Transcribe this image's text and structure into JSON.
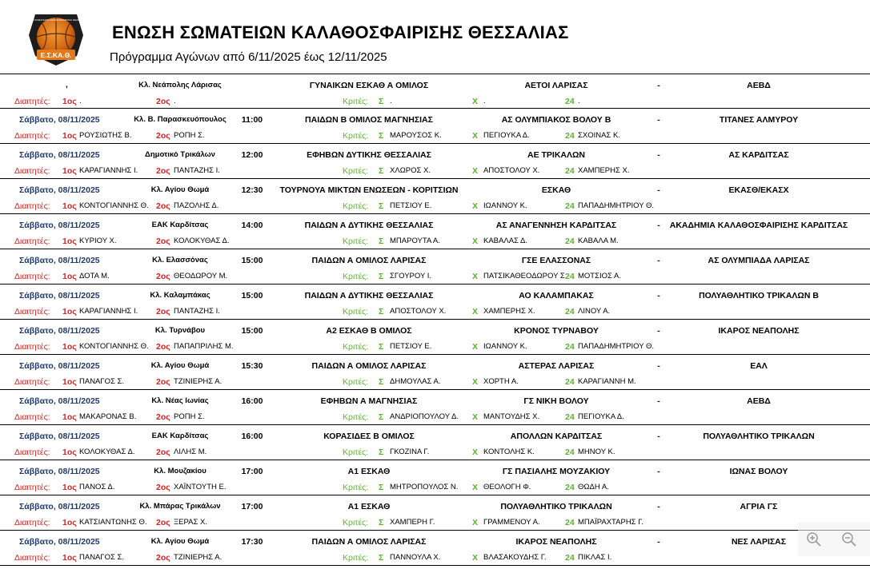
{
  "header": {
    "logo_text_top": "ΕΝΩΣΗ ΣΩΜΑΤΕΙΩΝ ΚΑΛΑΘΟΣΦΑΙΡΙΣΗΣ ΘΕΣΣΑΛΙΑΣ",
    "logo_text_bottom": "Ε.Σ.ΚΑ.Θ.",
    "title": "ΕΝΩΣΗ ΣΩΜΑΤΕΙΩΝ ΚΑΛΑΘΟΣΦΑΙΡΙΣΗΣ ΘΕΣΣΑΛΙΑΣ",
    "subtitle": "Πρόγραμμα Αγώνων από 6/11/2025 έως 12/11/2025"
  },
  "labels": {
    "referees": "Διαιτητές:",
    "ref1": "1ος",
    "ref2": "2ος",
    "judges": "Κριτές:",
    "judge_s": "Σ",
    "judge_x": "Χ",
    "judge_24": "24",
    "dash": "-"
  },
  "colors": {
    "date": "#1f3a6e",
    "referees": "#e02020",
    "judges": "#5bb330"
  },
  "matches": [
    {
      "date": ",",
      "court": "Κλ. Νεάπολης Λάρισας",
      "time": "",
      "category": "ΓΥΝΑΙΚΩΝ ΕΣΚΑΘ Α ΟΜΙΛΟΣ",
      "home": "ΑΕΤΟΙ ΛΑΡΙΣΑΣ",
      "away": "ΑΕΒΔ",
      "ref1": ".",
      "ref2": ".",
      "judge1": ".",
      "judge2": ".",
      "judge3": "."
    },
    {
      "date": "Σάββατο, 08/11/2025",
      "court": "Κλ. Β. Παρασκευόπουλος",
      "time": "11:00",
      "category": "ΠΑΙΔΩΝ Β ΟΜΙΛΟΣ ΜΑΓΝΗΣΙΑΣ",
      "home": "ΑΣ ΟΛΥΜΠΙΑΚΟΣ ΒΟΛΟΥ Β",
      "away": "ΤΙΤΑΝΕΣ ΑΛΜΥΡΟΥ",
      "ref1": "ΡΟΥΣΙΩΤΗΣ Β.",
      "ref2": "ΡΟΠΗ Σ.",
      "judge1": "ΜΑΡΟΥΣΟΣ Κ.",
      "judge2": "ΠΕΓΙΟΥΚΑ Δ.",
      "judge3": "ΣΧΟΙΝΑΣ Κ."
    },
    {
      "date": "Σάββατο, 08/11/2025",
      "court": "Δημοτικό Τρικάλων",
      "time": "12:00",
      "category": "ΕΦΗΒΩΝ ΔΥΤΙΚΗΣ ΘΕΣΣΑΛΙΑΣ",
      "home": "ΑΕ ΤΡΙΚΑΛΩΝ",
      "away": "ΑΣ ΚΑΡΔΙΤΣΑΣ",
      "ref1": "ΚΑΡΑΓΙΑΝΝΗΣ Ι.",
      "ref2": "ΠΑΝΤΑΖΗΣ Ι.",
      "judge1": "ΧΛΩΡΟΣ Χ.",
      "judge2": "ΑΠΟΣΤΟΛΟΥ Χ.",
      "judge3": "ΧΑΜΠΕΡΗΣ Χ."
    },
    {
      "date": "Σάββατο, 08/11/2025",
      "court": "Κλ. Αγίου Θωμά",
      "time": "12:30",
      "category": "ΤΟΥΡΝΟΥΑ ΜΙΚΤΩΝ ΕΝΩΣΕΩΝ - ΚΟΡΙΤΣΙΩΝ",
      "home": "ΕΣΚΑΘ",
      "away": "ΕΚΑΣΘ/ΕΚΑΣΧ",
      "ref1": "ΚΟΝΤΟΓΙΑΝΝΗΣ Θ.",
      "ref2": "ΠΑΖΟΛΗΣ Δ.",
      "judge1": "ΠΕΤΣΙΟΥ Ε.",
      "judge2": "ΙΩΑΝΝΟΥ Κ.",
      "judge3": "ΠΑΠΑΔΗΜΗΤΡΙΟΥ Θ."
    },
    {
      "date": "Σάββατο, 08/11/2025",
      "court": "ΕΑΚ Καρδίτσας",
      "time": "14:00",
      "category": "ΠΑΙΔΩΝ Α ΔΥΤΙΚΗΣ ΘΕΣΣΑΛΙΑΣ",
      "home": "ΑΣ ΑΝΑΓΕΝΝΗΣΗ ΚΑΡΔΙΤΣΑΣ",
      "away": "ΑΚΑΔΗΜΙΑ ΚΑΛΑΘΟΣΦΑΙΡΙΣΗΣ ΚΑΡΔΙΤΣΑΣ",
      "ref1": "ΚΥΡΙΟΥ Χ.",
      "ref2": "ΚΟΛΟΚΥΘΑΣ Δ.",
      "judge1": "ΜΠΑΡΟΥΤΑ Α.",
      "judge2": "ΚΑΒΑΛΑΣ Δ.",
      "judge3": "ΚΑΒΑΛΑ Μ."
    },
    {
      "date": "Σάββατο, 08/11/2025",
      "court": "Κλ. Ελασσόνας",
      "time": "15:00",
      "category": "ΠΑΙΔΩΝ Α ΟΜΙΛΟΣ ΛΑΡΙΣΑΣ",
      "home": "ΓΣΕ ΕΛΑΣΣΟΝΑΣ",
      "away": "ΑΣ ΟΛΥΜΠΙΑΔΑ ΛΑΡΙΣΑΣ",
      "ref1": "ΔΟΤΑ Μ.",
      "ref2": "ΘΕΟΔΩΡΟΥ Μ.",
      "judge1": "ΣΓΟΥΡΟΥ Ι.",
      "judge2": "ΠΑΤΣΙΚΑΘΕΟΔΩΡΟΥ Σ",
      "judge3": "ΜΟΤΣΙΟΣ Α."
    },
    {
      "date": "Σάββατο, 08/11/2025",
      "court": "Κλ. Καλαμπάκας",
      "time": "15:00",
      "category": "ΠΑΙΔΩΝ Α ΔΥΤΙΚΗΣ ΘΕΣΣΑΛΙΑΣ",
      "home": "ΑΟ ΚΑΛΑΜΠΑΚΑΣ",
      "away": "ΠΟΛΥΑΘΛΗΤΙΚΟ ΤΡΙΚΑΛΩΝ Β",
      "ref1": "ΚΑΡΑΓΙΑΝΝΗΣ Ι.",
      "ref2": "ΠΑΝΤΑΖΗΣ Ι.",
      "judge1": "ΑΠΟΣΤΟΛΟΥ Χ.",
      "judge2": "ΧΑΜΠΕΡΗΣ Χ.",
      "judge3": "ΛΙΝΟΥ Α."
    },
    {
      "date": "Σάββατο, 08/11/2025",
      "court": "Κλ. Τυρνάβου",
      "time": "15:00",
      "category": "Α2 ΕΣΚΑΘ Β ΟΜΙΛΟΣ",
      "home": "ΚΡΟΝΟΣ ΤΥΡΝΑΒΟΥ",
      "away": "ΙΚΑΡΟΣ ΝΕΑΠΟΛΗΣ",
      "ref1": "ΚΟΝΤΟΓΙΑΝΝΗΣ Θ.",
      "ref2": "ΠΑΠΑΠΡΙΛΗΣ Μ.",
      "judge1": "ΠΕΤΣΙΟΥ Ε.",
      "judge2": "ΙΩΑΝΝΟΥ Κ.",
      "judge3": "ΠΑΠΑΔΗΜΗΤΡΙΟΥ Θ."
    },
    {
      "date": "Σάββατο, 08/11/2025",
      "court": "Κλ. Αγίου Θωμά",
      "time": "15:30",
      "category": "ΠΑΙΔΩΝ Α ΟΜΙΛΟΣ ΛΑΡΙΣΑΣ",
      "home": "ΑΣΤΕΡΑΣ ΛΑΡΙΣΑΣ",
      "away": "ΕΑΛ",
      "ref1": "ΠΑΝΑΓΟΣ Σ.",
      "ref2": "ΤΖΙΝΙΕΡΗΣ Α.",
      "judge1": "ΔΗΜΟΥΛΑΣ Α.",
      "judge2": "ΧΟΡΤΗ Α.",
      "judge3": "ΚΑΡΑΓΙΑΝΝΗ Μ."
    },
    {
      "date": "Σάββατο, 08/11/2025",
      "court": "Κλ. Νέας Ιωνίας",
      "time": "16:00",
      "category": "ΕΦΗΒΩΝ  Α ΜΑΓΝΗΣΙΑΣ",
      "home": "ΓΣ ΝΙΚΗ ΒΟΛΟΥ",
      "away": "ΑΕΒΔ",
      "ref1": "ΜΑΚΑΡΟΝΑΣ Β.",
      "ref2": "ΡΟΠΗ Σ.",
      "judge1": "ΑΝΔΡΙΟΠΟΥΛΟΥ Δ.",
      "judge2": "ΜΑΝΤΟΥΔΗΣ Χ.",
      "judge3": "ΠΕΓΙΟΥΚΑ Δ."
    },
    {
      "date": "Σάββατο, 08/11/2025",
      "court": "ΕΑΚ Καρδίτσας",
      "time": "16:00",
      "category": "ΚΟΡΑΣΙΔΕΣ Β ΟΜΙΛΟΣ",
      "home": "ΑΠΟΛΛΩΝ ΚΑΡΔΙΤΣΑΣ",
      "away": "ΠΟΛΥΑΘΛΗΤΙΚΟ ΤΡΙΚΑΛΩΝ",
      "ref1": "ΚΟΛΟΚΥΘΑΣ Δ.",
      "ref2": "ΛΙΛΗΣ Μ.",
      "judge1": "ΓΚΟΖΙΝΑ Γ.",
      "judge2": "ΚΟΝΤΟΛΗΣ Κ.",
      "judge3": "ΜΗΝΟΥ Κ."
    },
    {
      "date": "Σάββατο, 08/11/2025",
      "court": "Κλ. Μουζακίου",
      "time": "17:00",
      "category": "Α1 ΕΣΚΑΘ",
      "home": "ΓΣ ΠΑΣΙΑΛΗΣ ΜΟΥΖΑΚΙΟΥ",
      "away": "ΙΩΝΑΣ ΒΟΛΟΥ",
      "ref1": "ΠΑΝΟΣ Δ.",
      "ref2": "ΧΑΪΝΤΟΥΤΗ Ε.",
      "judge1": "ΜΗΤΡΟΠΟΥΛΟΣ Ν.",
      "judge2": "ΘΕΟΛΟΓΗ Φ.",
      "judge3": "ΘΩΔΗ Α."
    },
    {
      "date": "Σάββατο, 08/11/2025",
      "court": "Κλ. Μπάρας Τρικάλων",
      "time": "17:00",
      "category": "Α1 ΕΣΚΑΘ",
      "home": "ΠΟΛΥΑΘΛΗΤΙΚΟ ΤΡΙΚΑΛΩΝ",
      "away": "ΑΓΡΙΑ ΓΣ",
      "ref1": "ΚΑΤΣΙΑΝΤΩΝΗΣ Θ.",
      "ref2": "ΞΕΡΑΣ Χ.",
      "judge1": "ΧΑΜΠΕΡΗ Γ.",
      "judge2": "ΓΡΑΜΜΕΝΟΥ Α.",
      "judge3": "ΜΠΑΪΡΑΧΤΑΡΗΣ Γ."
    },
    {
      "date": "Σάββατο, 08/11/2025",
      "court": "Κλ. Αγίου Θωμά",
      "time": "17:30",
      "category": "ΠΑΙΔΩΝ Α ΟΜΙΛΟΣ ΛΑΡΙΣΑΣ",
      "home": "ΙΚΑΡΟΣ ΝΕΑΠΟΛΗΣ",
      "away": "ΝΕΣ ΛΑΡΙΣΑΣ",
      "ref1": "ΠΑΝΑΓΟΣ Σ.",
      "ref2": "ΤΖΙΝΙΕΡΗΣ Α.",
      "judge1": "ΠΑΝΝΟΥΛΑ Χ.",
      "judge2": "ΒΛΑΣΑΚΟΥΔΗΣ Γ.",
      "judge3": "ΠΙΚΛΑΣ Ι."
    }
  ]
}
